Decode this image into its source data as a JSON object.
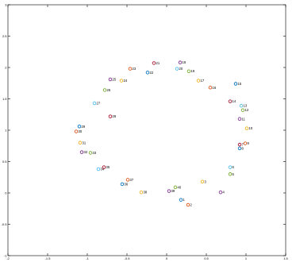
{
  "chart_data": {
    "type": "scatter",
    "title": "",
    "xlabel": "",
    "ylabel": "",
    "xlim": [
      -2,
      1.5
    ],
    "ylim": [
      -1,
      3
    ],
    "xticks": [
      -2,
      -1.5,
      -1,
      -0.5,
      0,
      0.5,
      1,
      1.5
    ],
    "xtick_labels": [
      "-2",
      "-1.5",
      "-1",
      "-0.5",
      "0",
      "0.5",
      "1",
      "1.5"
    ],
    "yticks": [
      -1,
      -0.5,
      0,
      0.5,
      1,
      1.5,
      2,
      2.5,
      3
    ],
    "ytick_labels": [
      "-1",
      "-0.5",
      "0",
      "0.5",
      "1",
      "1.5",
      "2",
      "2.5",
      "3"
    ],
    "grid": false,
    "colors": [
      "#0072bd",
      "#d95319",
      "#edb120",
      "#7e2f8e",
      "#77ac30",
      "#4dbeee",
      "#a2142f"
    ],
    "points": [
      {
        "label": "1",
        "x": 0.18,
        "y": -0.11,
        "color": "#0072bd"
      },
      {
        "label": "2",
        "x": 0.27,
        "y": -0.19,
        "color": "#d95319"
      },
      {
        "label": "3",
        "x": 0.45,
        "y": 0.18,
        "color": "#edb120"
      },
      {
        "label": "4",
        "x": 0.68,
        "y": 0.01,
        "color": "#7e2f8e"
      },
      {
        "label": "5",
        "x": 0.8,
        "y": 0.3,
        "color": "#77ac30"
      },
      {
        "label": "6",
        "x": 0.8,
        "y": 0.41,
        "color": "#4dbeee"
      },
      {
        "label": "7",
        "x": 0.92,
        "y": 0.77,
        "color": "#a2142f"
      },
      {
        "label": "8",
        "x": 0.92,
        "y": 0.71,
        "color": "#0072bd"
      },
      {
        "label": "9",
        "x": 0.99,
        "y": 0.79,
        "color": "#d95319"
      },
      {
        "label": "10",
        "x": 1.01,
        "y": 1.03,
        "color": "#edb120"
      },
      {
        "label": "11",
        "x": 0.92,
        "y": 1.18,
        "color": "#7e2f8e"
      },
      {
        "label": "12",
        "x": 0.96,
        "y": 1.32,
        "color": "#77ac30"
      },
      {
        "label": "13",
        "x": 0.94,
        "y": 1.39,
        "color": "#4dbeee"
      },
      {
        "label": "14",
        "x": 0.8,
        "y": 1.46,
        "color": "#a2142f"
      },
      {
        "label": "15",
        "x": 0.87,
        "y": 1.74,
        "color": "#0072bd"
      },
      {
        "label": "16",
        "x": 0.55,
        "y": 1.68,
        "color": "#d95319"
      },
      {
        "label": "17",
        "x": 0.4,
        "y": 1.79,
        "color": "#edb120"
      },
      {
        "label": "18",
        "x": 0.17,
        "y": 2.08,
        "color": "#7e2f8e"
      },
      {
        "label": "19",
        "x": 0.28,
        "y": 1.94,
        "color": "#77ac30"
      },
      {
        "label": "20",
        "x": 0.13,
        "y": 1.98,
        "color": "#4dbeee"
      },
      {
        "label": "21",
        "x": -0.16,
        "y": 2.07,
        "color": "#a2142f"
      },
      {
        "label": "22",
        "x": -0.24,
        "y": 1.92,
        "color": "#0072bd"
      },
      {
        "label": "23",
        "x": -0.46,
        "y": 1.98,
        "color": "#d95319"
      },
      {
        "label": "24",
        "x": -0.57,
        "y": 1.79,
        "color": "#edb120"
      },
      {
        "label": "25",
        "x": -0.71,
        "y": 1.81,
        "color": "#7e2f8e"
      },
      {
        "label": "26",
        "x": -0.78,
        "y": 1.64,
        "color": "#77ac30"
      },
      {
        "label": "27",
        "x": -0.91,
        "y": 1.43,
        "color": "#4dbeee"
      },
      {
        "label": "28",
        "x": -0.71,
        "y": 1.22,
        "color": "#a2142f"
      },
      {
        "label": "29",
        "x": -1.1,
        "y": 1.06,
        "color": "#0072bd"
      },
      {
        "label": "30",
        "x": -1.14,
        "y": 0.98,
        "color": "#d95319"
      },
      {
        "label": "31",
        "x": -1.09,
        "y": 0.8,
        "color": "#edb120"
      },
      {
        "label": "32",
        "x": -1.07,
        "y": 0.65,
        "color": "#7e2f8e"
      },
      {
        "label": "33",
        "x": -0.96,
        "y": 0.64,
        "color": "#77ac30"
      },
      {
        "label": "34",
        "x": -0.86,
        "y": 0.38,
        "color": "#4dbeee"
      },
      {
        "label": "35",
        "x": -0.79,
        "y": 0.41,
        "color": "#a2142f"
      },
      {
        "label": "36",
        "x": -0.56,
        "y": 0.14,
        "color": "#0072bd"
      },
      {
        "label": "37",
        "x": -0.49,
        "y": 0.21,
        "color": "#d95319"
      },
      {
        "label": "38",
        "x": -0.32,
        "y": 0.01,
        "color": "#edb120"
      },
      {
        "label": "39",
        "x": 0.03,
        "y": 0.03,
        "color": "#7e2f8e"
      },
      {
        "label": "40",
        "x": 0.11,
        "y": 0.09,
        "color": "#77ac30"
      }
    ]
  }
}
